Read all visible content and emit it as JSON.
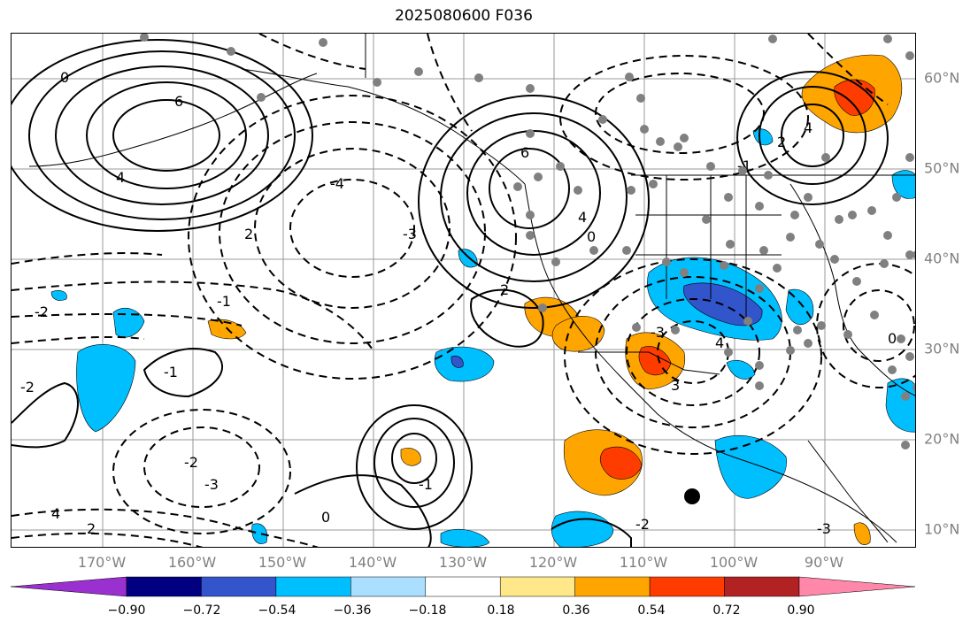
{
  "title": "2025080600 F036",
  "longitude_labels": [
    "170°W",
    "160°W",
    "150°W",
    "140°W",
    "130°W",
    "120°W",
    "110°W",
    "100°W",
    "90°W"
  ],
  "latitude_labels": [
    "60°N",
    "50°N",
    "40°N",
    "30°N",
    "20°N",
    "10°N"
  ],
  "colorbar": {
    "ticks": [
      "−0.90",
      "−0.72",
      "−0.54",
      "−0.36",
      "−0.18",
      "0.18",
      "0.36",
      "0.54",
      "0.72",
      "0.90"
    ],
    "colors": [
      "#9b30d0",
      "#000080",
      "#3355cc",
      "#00bfff",
      "#aadfff",
      "#ffffff",
      "#ffe88a",
      "#ffa500",
      "#ff3c00",
      "#b22222",
      "#ff88aa"
    ]
  },
  "contour_labels": [
    "6",
    "4",
    "2",
    "0",
    "-1",
    "-2",
    "-3",
    "-4",
    "6",
    "4",
    "2",
    "0",
    "-1",
    "-2",
    "-3",
    "4",
    "2",
    "0",
    "-1",
    "-2",
    "-3",
    "4",
    "3",
    "2",
    "0",
    "-1",
    "-2",
    "-3",
    "4"
  ],
  "map_features": {
    "coastlines": "black",
    "state_borders": "black",
    "gridlines": "gray",
    "station_markers": "gray dots",
    "highlight_marker": "black dot"
  }
}
